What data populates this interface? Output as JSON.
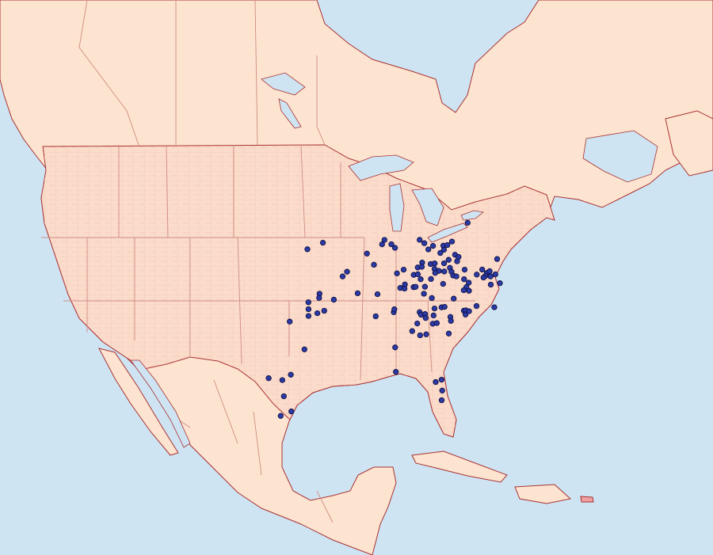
{
  "map": {
    "projection": "conic",
    "colors": {
      "ocean": "#cfe4f3",
      "land": "#fde4d0",
      "us_land": "#fbdccb",
      "border": "#cf8b84",
      "coast": "#a83232",
      "county": "#efb9ad",
      "highlight_island": "#f0a0a0",
      "marker_fill": "#2c3aa3",
      "marker_stroke": "#0d0f45"
    },
    "marker_icon": "circle",
    "occurrences": [
      [
        -90.5,
        41.8
      ],
      [
        -92.1,
        41.5
      ],
      [
        -84.5,
        41.3
      ],
      [
        -84.8,
        41.0
      ],
      [
        -83.9,
        40.9
      ],
      [
        -83.6,
        40.6
      ],
      [
        -81.1,
        40.9
      ],
      [
        -80.7,
        40.6
      ],
      [
        -78.0,
        40.4
      ],
      [
        -79.9,
        40.3
      ],
      [
        -80.4,
        40.1
      ],
      [
        -78.9,
        40.2
      ],
      [
        -78.5,
        40.2
      ],
      [
        -78.9,
        39.9
      ],
      [
        -79.3,
        39.7
      ],
      [
        -86.4,
        40.5
      ],
      [
        -85.9,
        39.6
      ],
      [
        -77.9,
        39.4
      ],
      [
        -77.6,
        39.2
      ],
      [
        -77.8,
        38.9
      ],
      [
        -78.6,
        39.1
      ],
      [
        -73.9,
        38.6
      ],
      [
        -81.2,
        39.2
      ],
      [
        -80.4,
        39.0
      ],
      [
        -80.0,
        39.0
      ],
      [
        -79.1,
        38.9
      ],
      [
        -81.7,
        38.9
      ],
      [
        -81.3,
        38.9
      ],
      [
        -83.1,
        38.9
      ],
      [
        -80.1,
        38.6
      ],
      [
        -79.7,
        38.4
      ],
      [
        -79.2,
        38.3
      ],
      [
        -78.6,
        38.5
      ],
      [
        -77.2,
        38.2
      ],
      [
        -78.5,
        38.2
      ],
      [
        -78.4,
        37.9
      ],
      [
        -78.1,
        37.8
      ],
      [
        -76.1,
        37.7
      ],
      [
        -75.5,
        38.0
      ],
      [
        -75.1,
        37.7
      ],
      [
        -74.8,
        37.8
      ],
      [
        -75.3,
        37.5
      ],
      [
        -74.8,
        37.4
      ],
      [
        -74.3,
        37.5
      ],
      [
        -75.5,
        37.4
      ],
      [
        -83.8,
        38.7
      ],
      [
        -82.2,
        38.4
      ],
      [
        -81.8,
        38.4
      ],
      [
        -81.6,
        38.0
      ],
      [
        -80.1,
        38.3
      ],
      [
        -80.6,
        37.9
      ],
      [
        -77.4,
        37.5
      ],
      [
        -77.0,
        37.2
      ],
      [
        -77.3,
        36.9
      ],
      [
        -74.9,
        36.8
      ],
      [
        -74.0,
        36.8
      ],
      [
        -77.6,
        36.7
      ],
      [
        -77.1,
        36.6
      ],
      [
        -79.5,
        37.4
      ],
      [
        -83.7,
        37.6
      ],
      [
        -83.2,
        37.8
      ],
      [
        -83.3,
        37.5
      ],
      [
        -82.4,
        37.5
      ],
      [
        -82.2,
        37.5
      ],
      [
        -81.3,
        37.4
      ],
      [
        -81.5,
        36.9
      ],
      [
        -80.8,
        36.5
      ],
      [
        -78.7,
        36.2
      ],
      [
        -89.1,
        39.1
      ],
      [
        -88.6,
        39.4
      ],
      [
        -87.9,
        37.7
      ],
      [
        -86.0,
        37.4
      ],
      [
        -91.6,
        38.1
      ],
      [
        -91.7,
        37.8
      ],
      [
        -90.3,
        37.5
      ],
      [
        -92.8,
        37.6
      ],
      [
        -92.9,
        37.1
      ],
      [
        -93.0,
        36.6
      ],
      [
        -92.1,
        36.7
      ],
      [
        -91.4,
        36.8
      ],
      [
        -94.9,
        36.4
      ],
      [
        -86.5,
        35.8
      ],
      [
        -84.7,
        35.9
      ],
      [
        -84.6,
        36.1
      ],
      [
        -82.2,
        35.6
      ],
      [
        -82.1,
        35.4
      ],
      [
        -81.7,
        35.4
      ],
      [
        -81.7,
        35.1
      ],
      [
        -80.9,
        35.2
      ],
      [
        -80.7,
        35.7
      ],
      [
        -80.0,
        35.7
      ],
      [
        -79.7,
        35.7
      ],
      [
        -77.9,
        35.2
      ],
      [
        -77.7,
        35.2
      ],
      [
        -77.4,
        35.1
      ],
      [
        -77.8,
        34.9
      ],
      [
        -76.6,
        35.4
      ],
      [
        -74.9,
        35.1
      ],
      [
        -79.3,
        34.9
      ],
      [
        -79.3,
        34.6
      ],
      [
        -81.1,
        34.6
      ],
      [
        -80.7,
        34.6
      ],
      [
        -82.6,
        34.8
      ],
      [
        -83.2,
        34.3
      ],
      [
        -82.5,
        33.9
      ],
      [
        -81.9,
        33.9
      ],
      [
        -79.7,
        33.7
      ],
      [
        -93.9,
        34.2
      ],
      [
        -85.1,
        33.3
      ],
      [
        -85.4,
        31.5
      ],
      [
        -95.6,
        32.5
      ],
      [
        -96.5,
        32.2
      ],
      [
        -81.7,
        30.3
      ],
      [
        -81.1,
        30.4
      ],
      [
        -81.2,
        29.6
      ],
      [
        -81.4,
        28.9
      ],
      [
        -96.6,
        31.0
      ],
      [
        -96.1,
        29.8
      ],
      [
        -97.2,
        29.6
      ],
      [
        -97.8,
        32.5
      ],
      [
        -76.2,
        41.6
      ]
    ]
  }
}
